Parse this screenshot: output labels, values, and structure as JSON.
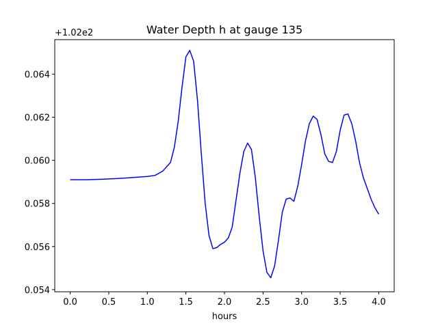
{
  "chart_data": {
    "type": "line",
    "title": "Water Depth h at gauge 135",
    "xlabel": "hours",
    "ylabel": "",
    "offset_text": "+1.02e2",
    "xlim": [
      -0.2,
      4.2
    ],
    "ylim": [
      0.0539,
      0.0656
    ],
    "x_ticks": [
      0.0,
      0.5,
      1.0,
      1.5,
      2.0,
      2.5,
      3.0,
      3.5,
      4.0
    ],
    "x_tick_labels": [
      "0.0",
      "0.5",
      "1.0",
      "1.5",
      "2.0",
      "2.5",
      "3.0",
      "3.5",
      "4.0"
    ],
    "y_ticks": [
      0.054,
      0.056,
      0.058,
      0.06,
      0.062,
      0.064
    ],
    "y_tick_labels": [
      "0.054",
      "0.056",
      "0.058",
      "0.060",
      "0.062",
      "0.064"
    ],
    "grid": false,
    "legend": "none",
    "series": [
      {
        "color": "#0000ff",
        "x": [
          0.0,
          0.2,
          0.4,
          0.6,
          0.8,
          1.0,
          1.1,
          1.2,
          1.3,
          1.35,
          1.4,
          1.45,
          1.5,
          1.55,
          1.6,
          1.65,
          1.7,
          1.75,
          1.8,
          1.85,
          1.9,
          1.95,
          2.0,
          2.05,
          2.1,
          2.2,
          2.25,
          2.3,
          2.35,
          2.4,
          2.45,
          2.5,
          2.55,
          2.6,
          2.65,
          2.7,
          2.75,
          2.8,
          2.85,
          2.9,
          2.95,
          3.0,
          3.05,
          3.1,
          3.15,
          3.2,
          3.25,
          3.3,
          3.35,
          3.4,
          3.45,
          3.5,
          3.55,
          3.6,
          3.65,
          3.7,
          3.75,
          3.8,
          3.85,
          3.9,
          3.95,
          4.0
        ],
        "y": [
          0.0591,
          0.0591,
          0.05912,
          0.05915,
          0.0592,
          0.05925,
          0.0593,
          0.0595,
          0.0599,
          0.0606,
          0.0618,
          0.0634,
          0.0648,
          0.0651,
          0.0646,
          0.0628,
          0.0603,
          0.058,
          0.0565,
          0.0559,
          0.05595,
          0.0561,
          0.0562,
          0.0564,
          0.0569,
          0.0594,
          0.0604,
          0.0608,
          0.0605,
          0.0592,
          0.0574,
          0.0558,
          0.0548,
          0.05455,
          0.0551,
          0.0563,
          0.0576,
          0.0582,
          0.05825,
          0.0581,
          0.0588,
          0.0598,
          0.0609,
          0.0617,
          0.06205,
          0.0619,
          0.0612,
          0.0603,
          0.05995,
          0.0599,
          0.0604,
          0.0614,
          0.0621,
          0.06215,
          0.0617,
          0.0609,
          0.0599,
          0.0592,
          0.0587,
          0.0582,
          0.0578,
          0.0575
        ]
      }
    ]
  }
}
